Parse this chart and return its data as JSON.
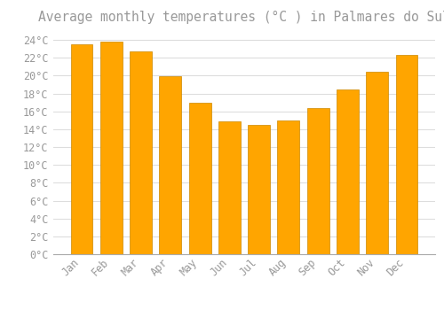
{
  "title": "Average monthly temperatures (°C ) in Palmares do Sul",
  "months": [
    "Jan",
    "Feb",
    "Mar",
    "Apr",
    "May",
    "Jun",
    "Jul",
    "Aug",
    "Sep",
    "Oct",
    "Nov",
    "Dec"
  ],
  "temperatures": [
    23.5,
    23.8,
    22.7,
    19.9,
    17.0,
    14.9,
    14.5,
    15.0,
    16.4,
    18.5,
    20.4,
    22.3
  ],
  "bar_color": "#FFA500",
  "bar_edge_color": "#CC8800",
  "background_color": "#FFFFFF",
  "grid_color": "#DDDDDD",
  "text_color": "#999999",
  "ylim": [
    0,
    25
  ],
  "ytick_max": 24,
  "ytick_step": 2,
  "title_fontsize": 10.5,
  "tick_fontsize": 8.5
}
